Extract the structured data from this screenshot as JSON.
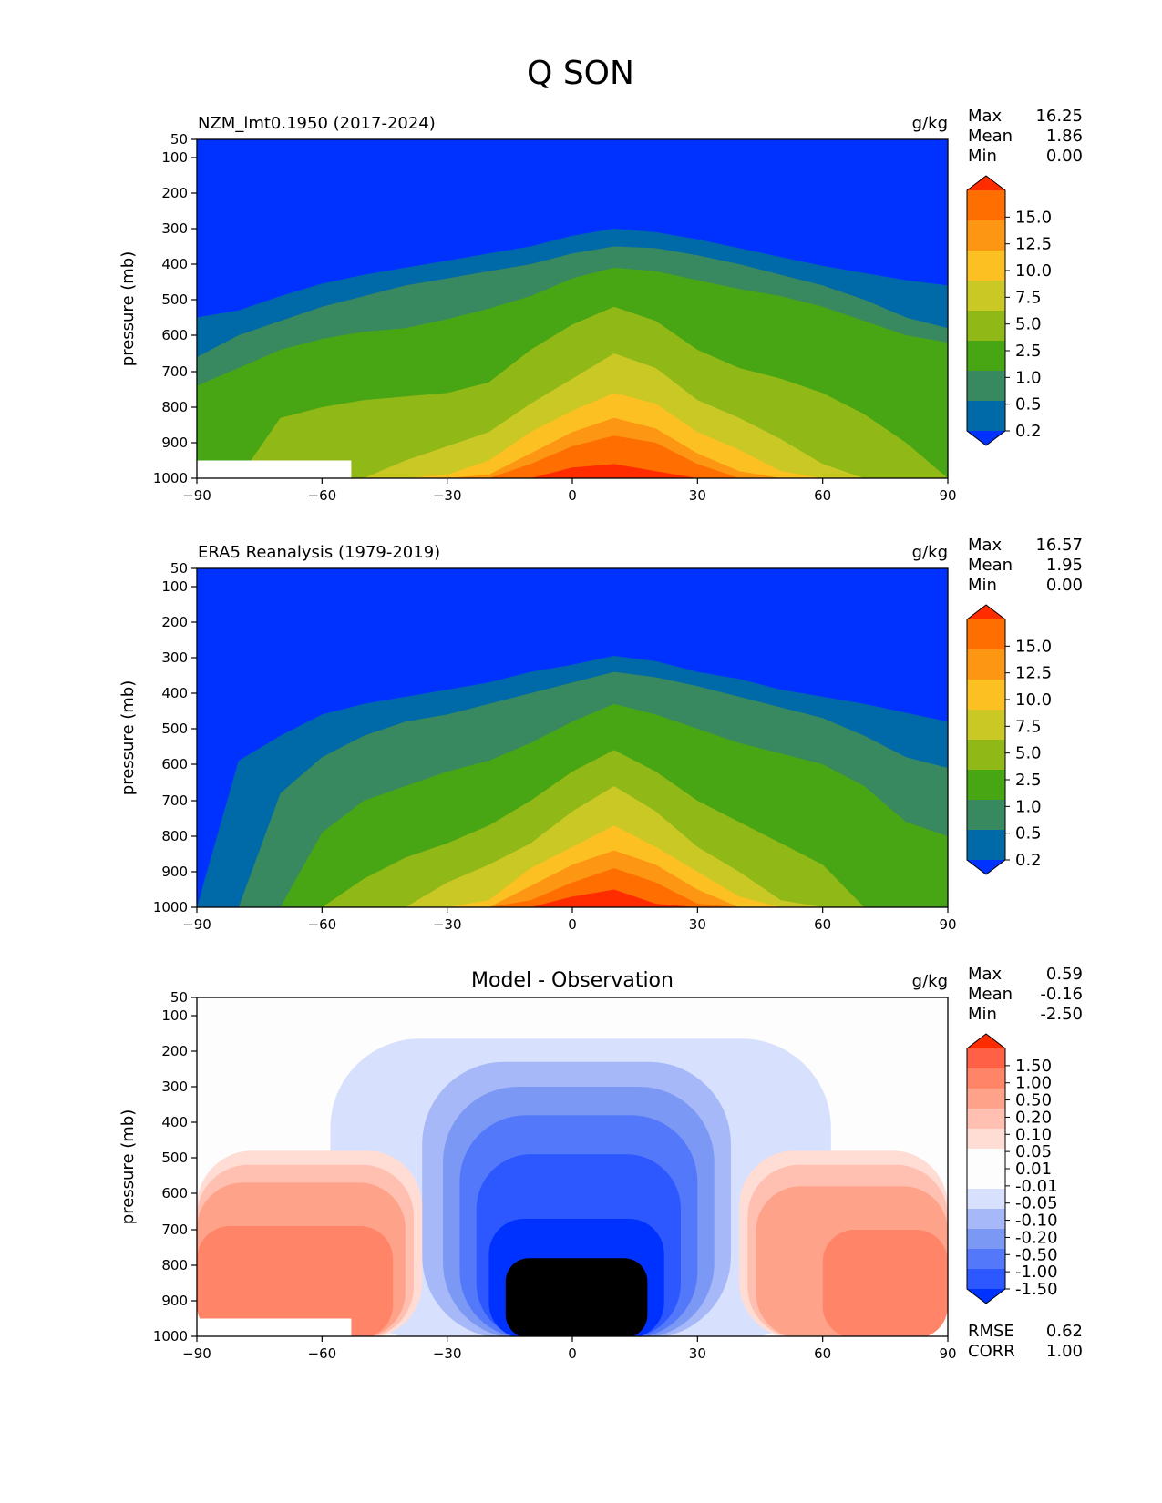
{
  "figure_title": "Q SON",
  "colors": {
    "full_levels": [
      "#0032ff",
      "#006aa8",
      "#388860",
      "#48a614",
      "#90b816",
      "#cac824",
      "#fdc022",
      "#fd9612",
      "#ff6e00",
      "#ff2c00"
    ],
    "diff_levels": [
      "#0032ff",
      "#2d58ff",
      "#5478fa",
      "#7c98f5",
      "#a6b8f8",
      "#d7e0fd",
      "#fdfdfd",
      "#ffdcd4",
      "#ffc0b2",
      "#ffa28a",
      "#ff8468",
      "#ff6046",
      "#ff2c00"
    ]
  },
  "chart_data": [
    {
      "type": "contourf",
      "title": "NZM_lmt0.1950 (2017-2024)",
      "units": "g/kg",
      "ylabel": "pressure (mb)",
      "xlim": [
        -90,
        90
      ],
      "ylim": [
        1000,
        50
      ],
      "xticks": [
        "−90",
        "−60",
        "−30",
        "0",
        "30",
        "60",
        "90"
      ],
      "yticks": [
        "50",
        "100",
        "200",
        "300",
        "400",
        "500",
        "600",
        "700",
        "800",
        "900",
        "1000"
      ],
      "stats": [
        {
          "label": "Max",
          "value": "16.25"
        },
        {
          "label": "Mean",
          "value": "1.86"
        },
        {
          "label": "Min",
          "value": "0.00"
        }
      ],
      "colorbar_ticks": [
        "15.0",
        "12.5",
        "10.0",
        "7.5",
        "5.0",
        "2.5",
        "1.0",
        "0.5",
        "0.2"
      ],
      "levels": [
        0.2,
        0.5,
        1.0,
        2.5,
        5.0,
        7.5,
        10.0,
        12.5,
        15.0
      ],
      "contour_lat": [
        -90,
        -80,
        -70,
        -60,
        -50,
        -40,
        -30,
        -20,
        -10,
        0,
        10,
        20,
        30,
        40,
        50,
        60,
        70,
        80,
        90
      ],
      "contour_boundaries_mb": [
        [
          550,
          530,
          490,
          455,
          430,
          410,
          390,
          370,
          350,
          320,
          300,
          310,
          330,
          355,
          380,
          405,
          425,
          445,
          460
        ],
        [
          660,
          600,
          560,
          520,
          490,
          460,
          440,
          420,
          400,
          370,
          350,
          355,
          375,
          400,
          430,
          460,
          500,
          550,
          580
        ],
        [
          740,
          690,
          640,
          610,
          590,
          580,
          555,
          525,
          490,
          440,
          410,
          420,
          445,
          470,
          490,
          520,
          560,
          600,
          620
        ],
        [
          1000,
          1000,
          830,
          800,
          780,
          770,
          760,
          730,
          640,
          570,
          520,
          560,
          640,
          690,
          720,
          760,
          820,
          900,
          1000
        ],
        [
          1000,
          1000,
          1000,
          1000,
          1000,
          950,
          910,
          870,
          790,
          720,
          650,
          690,
          780,
          830,
          890,
          960,
          1000,
          1000,
          1000
        ],
        [
          1000,
          1000,
          1000,
          1000,
          1000,
          1000,
          990,
          950,
          870,
          810,
          760,
          790,
          870,
          920,
          980,
          1000,
          1000,
          1000,
          1000
        ],
        [
          1000,
          1000,
          1000,
          1000,
          1000,
          1000,
          1000,
          990,
          930,
          870,
          830,
          860,
          930,
          980,
          1000,
          1000,
          1000,
          1000,
          1000
        ],
        [
          1000,
          1000,
          1000,
          1000,
          1000,
          1000,
          1000,
          1000,
          960,
          910,
          880,
          900,
          960,
          1000,
          1000,
          1000,
          1000,
          1000,
          1000
        ],
        [
          1000,
          1000,
          1000,
          1000,
          1000,
          1000,
          1000,
          1000,
          1000,
          970,
          960,
          980,
          1000,
          1000,
          1000,
          1000,
          1000,
          1000,
          1000
        ]
      ],
      "masked_region": {
        "lat": [
          -90,
          -53
        ],
        "pressure_mb": [
          950,
          1000
        ]
      }
    },
    {
      "type": "contourf",
      "title": "ERA5 Reanalysis (1979-2019)",
      "units": "g/kg",
      "ylabel": "pressure (mb)",
      "xlim": [
        -90,
        90
      ],
      "ylim": [
        1000,
        50
      ],
      "xticks": [
        "−90",
        "−60",
        "−30",
        "0",
        "30",
        "60",
        "90"
      ],
      "yticks": [
        "50",
        "100",
        "200",
        "300",
        "400",
        "500",
        "600",
        "700",
        "800",
        "900",
        "1000"
      ],
      "stats": [
        {
          "label": "Max",
          "value": "16.57"
        },
        {
          "label": "Mean",
          "value": "1.95"
        },
        {
          "label": "Min",
          "value": "0.00"
        }
      ],
      "colorbar_ticks": [
        "15.0",
        "12.5",
        "10.0",
        "7.5",
        "5.0",
        "2.5",
        "1.0",
        "0.5",
        "0.2"
      ],
      "levels": [
        0.2,
        0.5,
        1.0,
        2.5,
        5.0,
        7.5,
        10.0,
        12.5,
        15.0
      ],
      "contour_lat": [
        -90,
        -80,
        -70,
        -60,
        -50,
        -40,
        -30,
        -20,
        -10,
        0,
        10,
        20,
        30,
        40,
        50,
        60,
        70,
        80,
        90
      ],
      "contour_boundaries_mb": [
        [
          1000,
          590,
          520,
          460,
          430,
          410,
          390,
          370,
          340,
          320,
          295,
          310,
          340,
          360,
          390,
          410,
          430,
          455,
          480
        ],
        [
          1000,
          1000,
          680,
          580,
          520,
          480,
          460,
          430,
          400,
          370,
          340,
          355,
          380,
          410,
          440,
          470,
          520,
          580,
          610
        ],
        [
          1000,
          1000,
          1000,
          790,
          700,
          660,
          620,
          590,
          540,
          480,
          430,
          460,
          500,
          540,
          570,
          600,
          660,
          760,
          800
        ],
        [
          1000,
          1000,
          1000,
          1000,
          920,
          860,
          820,
          770,
          700,
          620,
          560,
          620,
          700,
          760,
          820,
          880,
          1000,
          1000,
          1000
        ],
        [
          1000,
          1000,
          1000,
          1000,
          1000,
          1000,
          930,
          880,
          820,
          730,
          660,
          730,
          830,
          900,
          980,
          1000,
          1000,
          1000,
          1000
        ],
        [
          1000,
          1000,
          1000,
          1000,
          1000,
          1000,
          1000,
          980,
          890,
          830,
          770,
          830,
          900,
          970,
          1000,
          1000,
          1000,
          1000,
          1000
        ],
        [
          1000,
          1000,
          1000,
          1000,
          1000,
          1000,
          1000,
          1000,
          940,
          880,
          840,
          880,
          950,
          1000,
          1000,
          1000,
          1000,
          1000,
          1000
        ],
        [
          1000,
          1000,
          1000,
          1000,
          1000,
          1000,
          1000,
          1000,
          980,
          930,
          890,
          930,
          990,
          1000,
          1000,
          1000,
          1000,
          1000,
          1000
        ],
        [
          1000,
          1000,
          1000,
          1000,
          1000,
          1000,
          1000,
          1000,
          1000,
          970,
          950,
          990,
          1000,
          1000,
          1000,
          1000,
          1000,
          1000,
          1000
        ]
      ]
    },
    {
      "type": "contourf",
      "title": "Model - Observation",
      "units": "g/kg",
      "ylabel": "pressure (mb)",
      "xlim": [
        -90,
        90
      ],
      "ylim": [
        1000,
        50
      ],
      "xticks": [
        "−90",
        "−60",
        "−30",
        "0",
        "30",
        "60",
        "90"
      ],
      "yticks": [
        "50",
        "100",
        "200",
        "300",
        "400",
        "500",
        "600",
        "700",
        "800",
        "900",
        "1000"
      ],
      "stats": [
        {
          "label": "Max",
          "value": "0.59"
        },
        {
          "label": "Mean",
          "value": "-0.16"
        },
        {
          "label": "Min",
          "value": "-2.50"
        }
      ],
      "extra_stats": [
        {
          "label": "RMSE",
          "value": "0.62"
        },
        {
          "label": "CORR",
          "value": "1.00"
        }
      ],
      "colorbar_ticks": [
        "1.50",
        "1.00",
        "0.50",
        "0.20",
        "0.10",
        "0.05",
        "0.01",
        "-0.01",
        "-0.05",
        "-0.10",
        "-0.20",
        "-0.50",
        "-1.00",
        "-1.50"
      ],
      "levels": [
        -1.5,
        -1.0,
        -0.5,
        -0.2,
        -0.1,
        -0.05,
        -0.01,
        0.01,
        0.05,
        0.1,
        0.2,
        0.5,
        1.0,
        1.5
      ],
      "negative_regions": [
        {
          "level": "(-0.05, -0.01)",
          "lat": [
            -58,
            62
          ],
          "pressure_mb": [
            165,
            1000
          ]
        },
        {
          "level": "(-0.10, -0.05)",
          "lat": [
            -36,
            38
          ],
          "pressure_mb": [
            230,
            1000
          ]
        },
        {
          "level": "(-0.20, -0.10)",
          "lat": [
            -31,
            34
          ],
          "pressure_mb": [
            300,
            1000
          ]
        },
        {
          "level": "(-0.50, -0.20)",
          "lat": [
            -27,
            30
          ],
          "pressure_mb": [
            380,
            1000
          ]
        },
        {
          "level": "(-1.00, -0.50)",
          "lat": [
            -23,
            26
          ],
          "pressure_mb": [
            490,
            1000
          ]
        },
        {
          "level": "(-1.50, -1.00)",
          "lat": [
            -20,
            22
          ],
          "pressure_mb": [
            670,
            1000
          ]
        },
        {
          "level": "< -1.50",
          "lat": [
            -16,
            18
          ],
          "pressure_mb": [
            780,
            1000
          ]
        }
      ],
      "positive_regions": [
        {
          "level": "(0.01, 0.05)",
          "lat": [
            -90,
            -36
          ],
          "pressure_mb": [
            480,
            1000
          ]
        },
        {
          "level": "(0.05, 0.10)",
          "lat": [
            -90,
            -38
          ],
          "pressure_mb": [
            520,
            1000
          ]
        },
        {
          "level": "(0.10, 0.20)",
          "lat": [
            -90,
            -40
          ],
          "pressure_mb": [
            570,
            1000
          ]
        },
        {
          "level": "(0.20, 0.50)",
          "lat": [
            -90,
            -43
          ],
          "pressure_mb": [
            690,
            1000
          ]
        },
        {
          "level": "(0.01, 0.05)",
          "lat": [
            40,
            90
          ],
          "pressure_mb": [
            480,
            1000
          ]
        },
        {
          "level": "(0.05, 0.10)",
          "lat": [
            42,
            90
          ],
          "pressure_mb": [
            520,
            1000
          ]
        },
        {
          "level": "(0.10, 0.20)",
          "lat": [
            44,
            90
          ],
          "pressure_mb": [
            580,
            1000
          ]
        },
        {
          "level": "(0.20, 0.50)",
          "lat": [
            60,
            90
          ],
          "pressure_mb": [
            700,
            1000
          ]
        }
      ],
      "masked_region": {
        "lat": [
          -90,
          -53
        ],
        "pressure_mb": [
          950,
          1000
        ]
      }
    }
  ]
}
